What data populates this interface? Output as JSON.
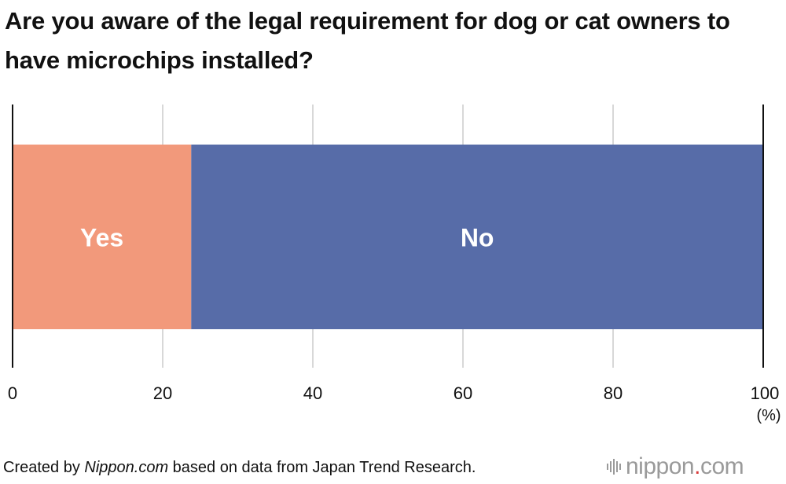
{
  "title": "Are you aware of the legal requirement for dog or cat owners to have microchips installed?",
  "chart_data": {
    "type": "bar",
    "orientation": "horizontal-stacked",
    "title": "Are you aware of the legal requirement for dog or cat owners to have microchips installed?",
    "series": [
      {
        "name": "Yes",
        "value": 23.8,
        "color": "#F2997B"
      },
      {
        "name": "No",
        "value": 76.2,
        "color": "#576CA8"
      }
    ],
    "xlim": [
      0,
      100
    ],
    "xticks": [
      "0",
      "20",
      "40",
      "60",
      "80",
      "100"
    ],
    "xtick_values": [
      0,
      20,
      40,
      60,
      80,
      100
    ],
    "xunit": "(%)",
    "grid": true
  },
  "footer": {
    "prefix": "Created by ",
    "brand": "Nippon.com",
    "suffix": " based on data from Japan Trend Research."
  },
  "logo": {
    "name": "nippon",
    "dot": ".",
    "tld": "com"
  },
  "colors": {
    "grid": "#cccccc",
    "axis": "#111111",
    "label_text": "#ffffff"
  }
}
